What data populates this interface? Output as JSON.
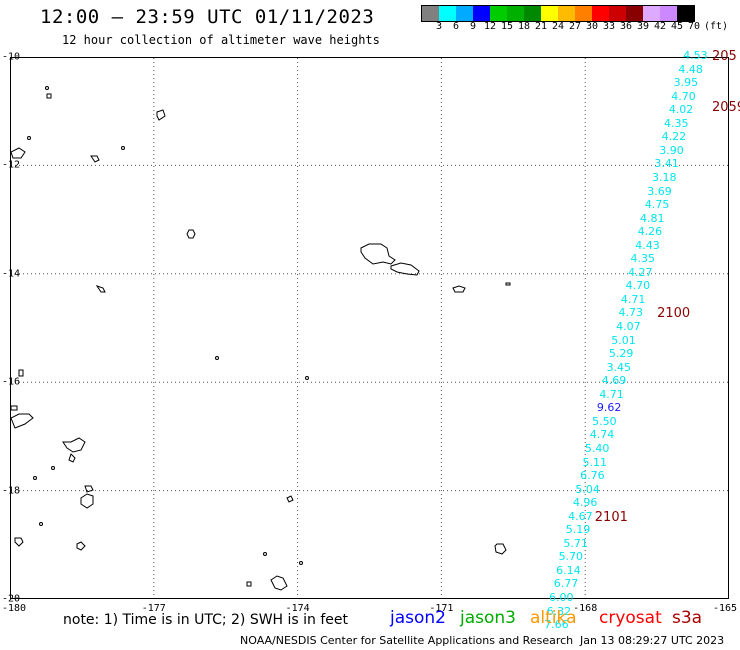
{
  "title": "12:00 — 23:59 UTC 01/11/2023",
  "subtitle": "12 hour collection of altimeter wave heights",
  "colorbar": {
    "colors": [
      "#808080",
      "#00ffff",
      "#00aaff",
      "#0000ff",
      "#00cc00",
      "#00b000",
      "#008800",
      "#ffff00",
      "#ffbb00",
      "#ff7f00",
      "#ff0000",
      "#cc0000",
      "#880000",
      "#ddaaff",
      "#cc88ff",
      "#000000"
    ],
    "labels": [
      "3",
      "6",
      "9",
      "12",
      "15",
      "18",
      "21",
      "24",
      "27",
      "30",
      "33",
      "36",
      "39",
      "42",
      "45",
      "70"
    ],
    "unit": "(ft)"
  },
  "map": {
    "lat_labels": [
      "-10",
      "-12",
      "-14",
      "-16",
      "-18",
      "-20"
    ],
    "lon_labels": [
      "-180",
      "-177",
      "-174",
      "-171",
      "-168",
      "-165"
    ],
    "lat_range": [
      -20,
      -10
    ],
    "lon_range": [
      -180,
      -165
    ],
    "grid": true,
    "track_color": "#00e5ee",
    "track_values": [
      {
        "v": "4.53",
        "lon": -165.7,
        "lat": -10.0,
        "c": "c"
      },
      {
        "v": "4.48",
        "lon": -165.8,
        "lat": -10.25,
        "c": "c"
      },
      {
        "v": "3.95",
        "lon": -165.9,
        "lat": -10.5,
        "c": "c"
      },
      {
        "v": "4.70",
        "lon": -165.95,
        "lat": -10.75,
        "c": "c"
      },
      {
        "v": "4.02",
        "lon": -166.0,
        "lat": -11.0,
        "c": "c"
      },
      {
        "v": "4.35",
        "lon": -166.1,
        "lat": -11.25,
        "c": "c"
      },
      {
        "v": "4.22",
        "lon": -166.15,
        "lat": -11.5,
        "c": "c"
      },
      {
        "v": "3.90",
        "lon": -166.2,
        "lat": -11.75,
        "c": "c"
      },
      {
        "v": "3.41",
        "lon": -166.3,
        "lat": -12.0,
        "c": "c"
      },
      {
        "v": "3.18",
        "lon": -166.35,
        "lat": -12.25,
        "c": "c"
      },
      {
        "v": "3.69",
        "lon": -166.45,
        "lat": -12.5,
        "c": "c"
      },
      {
        "v": "4.75",
        "lon": -166.5,
        "lat": -12.75,
        "c": "c"
      },
      {
        "v": "4.81",
        "lon": -166.6,
        "lat": -13.0,
        "c": "c"
      },
      {
        "v": "4.26",
        "lon": -166.65,
        "lat": -13.25,
        "c": "c"
      },
      {
        "v": "4.43",
        "lon": -166.7,
        "lat": -13.5,
        "c": "c"
      },
      {
        "v": "4.35",
        "lon": -166.8,
        "lat": -13.75,
        "c": "c"
      },
      {
        "v": "4.27",
        "lon": -166.85,
        "lat": -14.0,
        "c": "c"
      },
      {
        "v": "4.70",
        "lon": -166.9,
        "lat": -14.25,
        "c": "c"
      },
      {
        "v": "4.71",
        "lon": -167.0,
        "lat": -14.5,
        "c": "c"
      },
      {
        "v": "4.73",
        "lon": -167.05,
        "lat": -14.75,
        "c": "c"
      },
      {
        "v": "4.07",
        "lon": -167.1,
        "lat": -15.0,
        "c": "c"
      },
      {
        "v": "5.01",
        "lon": -167.2,
        "lat": -15.25,
        "c": "c"
      },
      {
        "v": "5.29",
        "lon": -167.25,
        "lat": -15.5,
        "c": "c"
      },
      {
        "v": "3.45",
        "lon": -167.3,
        "lat": -15.75,
        "c": "c"
      },
      {
        "v": "4.69",
        "lon": -167.4,
        "lat": -16.0,
        "c": "c"
      },
      {
        "v": "4.71",
        "lon": -167.45,
        "lat": -16.25,
        "c": "c"
      },
      {
        "v": "9.62",
        "lon": -167.5,
        "lat": -16.5,
        "c": "b"
      },
      {
        "v": "5.50",
        "lon": -167.6,
        "lat": -16.75,
        "c": "c"
      },
      {
        "v": "4.74",
        "lon": -167.65,
        "lat": -17.0,
        "c": "c"
      },
      {
        "v": "5.40",
        "lon": -167.75,
        "lat": -17.25,
        "c": "c"
      },
      {
        "v": "5.11",
        "lon": -167.8,
        "lat": -17.5,
        "c": "c"
      },
      {
        "v": "6.76",
        "lon": -167.85,
        "lat": -17.75,
        "c": "c"
      },
      {
        "v": "5.04",
        "lon": -167.95,
        "lat": -18.0,
        "c": "c"
      },
      {
        "v": "4.96",
        "lon": -168.0,
        "lat": -18.25,
        "c": "c"
      },
      {
        "v": "4.67",
        "lon": -168.1,
        "lat": -18.5,
        "c": "c"
      },
      {
        "v": "5.19",
        "lon": -168.15,
        "lat": -18.75,
        "c": "c"
      },
      {
        "v": "5.71",
        "lon": -168.2,
        "lat": -19.0,
        "c": "c"
      },
      {
        "v": "5.70",
        "lon": -168.3,
        "lat": -19.25,
        "c": "c"
      },
      {
        "v": "6.14",
        "lon": -168.35,
        "lat": -19.5,
        "c": "c"
      },
      {
        "v": "6.77",
        "lon": -168.4,
        "lat": -19.75,
        "c": "c"
      },
      {
        "v": "6.00",
        "lon": -168.5,
        "lat": -20.0,
        "c": "c"
      },
      {
        "v": "6.32",
        "lon": -168.55,
        "lat": -20.25,
        "c": "c"
      },
      {
        "v": "7.66",
        "lon": -168.6,
        "lat": -20.5,
        "c": "c"
      }
    ],
    "time_labels": [
      {
        "t": "205",
        "lon": -165.0,
        "lat": -10.0
      },
      {
        "t": "2059",
        "lon": -165.3,
        "lat": -10.95
      },
      {
        "t": "2100",
        "lon": -166.5,
        "lat": -14.75
      },
      {
        "t": "2101",
        "lon": -167.8,
        "lat": -18.5
      }
    ]
  },
  "note": "note: 1) Time is in UTC; 2) SWH is in feet",
  "satellites": [
    {
      "name": "jason2",
      "color": "#0000ff"
    },
    {
      "name": "jason3",
      "color": "#00aa00"
    },
    {
      "name": "altika",
      "color": "#ff9900"
    },
    {
      "name": "cryosat",
      "color": "#ff0000"
    },
    {
      "name": "s3a",
      "color": "#aa0000"
    }
  ],
  "credit": "NOAA/NESDIS Center for Satellite Applications and Research",
  "timestamp": "Jan 13 08:29:27 UTC 2023"
}
